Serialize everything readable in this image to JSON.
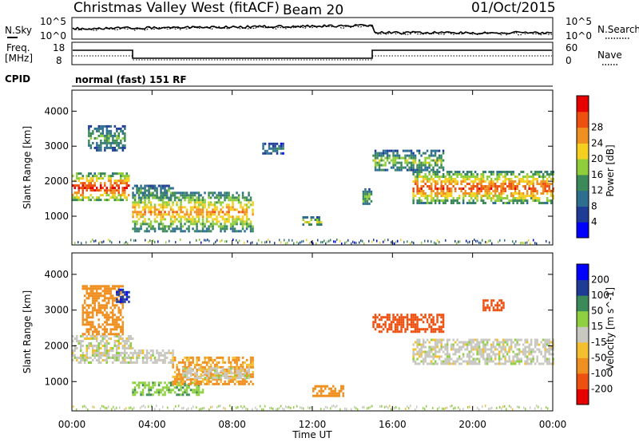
{
  "header": {
    "station": "Christmas Valley West (fitACF)",
    "beam": "Beam 20",
    "date": "01/Oct/2015"
  },
  "side_labels": {
    "nsky": "N.Sky",
    "nsearch": "N.Search",
    "freq_line1": "Freq.",
    "freq_line2": "[MHz]",
    "nave": "Nave",
    "cpid": "CPID",
    "cpid_value": "normal (fast) 151 RF"
  },
  "strip_ticks": {
    "noise_left": [
      "10^5",
      "10^0"
    ],
    "noise_right": [
      "10^5",
      "10^0"
    ],
    "freq_left": [
      "18",
      "8"
    ],
    "nave_right": [
      "60",
      "0"
    ]
  },
  "colors": {
    "power": [
      "#0000ff",
      "#1e3c96",
      "#2e6e8e",
      "#3c8a5a",
      "#8fce3a",
      "#f5d020",
      "#f09020",
      "#ee5010",
      "#e60000"
    ],
    "velocity": [
      "#e60000",
      "#ee5010",
      "#f09020",
      "#f5c030",
      "#c8c8c0",
      "#8fd040",
      "#3c8a5a",
      "#1e3c96",
      "#0000ff"
    ]
  },
  "chart_data": [
    {
      "type": "heatmap",
      "title": "Power",
      "xlabel": "Time UT",
      "ylabel": "Slant Range [km]",
      "x_ticks": [
        "00:00",
        "04:00",
        "08:00",
        "12:00",
        "16:00",
        "20:00",
        "00:00"
      ],
      "xlim_hours": [
        0,
        24
      ],
      "y_ticks": [
        1000,
        2000,
        3000,
        4000
      ],
      "ylim": [
        180,
        4600
      ],
      "colorbar_label": "Power [dB]",
      "colorbar_ticks": [
        4,
        8,
        12,
        16,
        20,
        24,
        28
      ],
      "regions": [
        {
          "t": [
            0,
            2.8
          ],
          "r": [
            1450,
            2250
          ],
          "value": 26
        },
        {
          "t": [
            0.8,
            2.6
          ],
          "r": [
            2900,
            3600
          ],
          "value": 12
        },
        {
          "t": [
            3.0,
            5.0
          ],
          "r": [
            1500,
            1900
          ],
          "value": 12
        },
        {
          "t": [
            3.0,
            9.0
          ],
          "r": [
            600,
            1700
          ],
          "value": 20
        },
        {
          "t": [
            11.5,
            12.4
          ],
          "r": [
            750,
            1000
          ],
          "value": 16
        },
        {
          "t": [
            14.5,
            14.9
          ],
          "r": [
            1350,
            1800
          ],
          "value": 14
        },
        {
          "t": [
            15.0,
            18.5
          ],
          "r": [
            2300,
            2900
          ],
          "value": 14
        },
        {
          "t": [
            17.0,
            24
          ],
          "r": [
            1400,
            2300
          ],
          "value": 24
        },
        {
          "t": [
            9.5,
            10.5
          ],
          "r": [
            2800,
            3100
          ],
          "value": 8
        }
      ]
    },
    {
      "type": "heatmap",
      "title": "Velocity",
      "xlabel": "Time UT",
      "ylabel": "Slant Range [km]",
      "x_ticks": [
        "00:00",
        "04:00",
        "08:00",
        "12:00",
        "16:00",
        "20:00",
        "00:00"
      ],
      "xlim_hours": [
        0,
        24
      ],
      "y_ticks": [
        1000,
        2000,
        3000,
        4000
      ],
      "ylim": [
        180,
        4600
      ],
      "colorbar_label": "Velocity [m s^-1]",
      "colorbar_ticks": [
        -200,
        -100,
        -50,
        -15,
        15,
        50,
        100,
        200
      ],
      "regions": [
        {
          "t": [
            0,
            3.0
          ],
          "r": [
            1500,
            2300
          ],
          "value": 0
        },
        {
          "t": [
            0.5,
            2.5
          ],
          "r": [
            2300,
            3700
          ],
          "value": -80
        },
        {
          "t": [
            2.2,
            2.8
          ],
          "r": [
            3200,
            3600
          ],
          "value": 200
        },
        {
          "t": [
            3.0,
            5.0
          ],
          "r": [
            1500,
            1900
          ],
          "value": 0
        },
        {
          "t": [
            3.0,
            6.5
          ],
          "r": [
            600,
            1000
          ],
          "value": 40
        },
        {
          "t": [
            5.0,
            9.0
          ],
          "r": [
            900,
            1700
          ],
          "value": -60
        },
        {
          "t": [
            5.5,
            8.8
          ],
          "r": [
            1100,
            1400
          ],
          "value": 0
        },
        {
          "t": [
            12.0,
            13.5
          ],
          "r": [
            600,
            900
          ],
          "value": -70
        },
        {
          "t": [
            15.0,
            18.5
          ],
          "r": [
            2400,
            2900
          ],
          "value": -150
        },
        {
          "t": [
            17.0,
            24
          ],
          "r": [
            1500,
            2200
          ],
          "value": 0
        },
        {
          "t": [
            20.5,
            21.5
          ],
          "r": [
            3000,
            3300
          ],
          "value": -180
        }
      ]
    }
  ]
}
